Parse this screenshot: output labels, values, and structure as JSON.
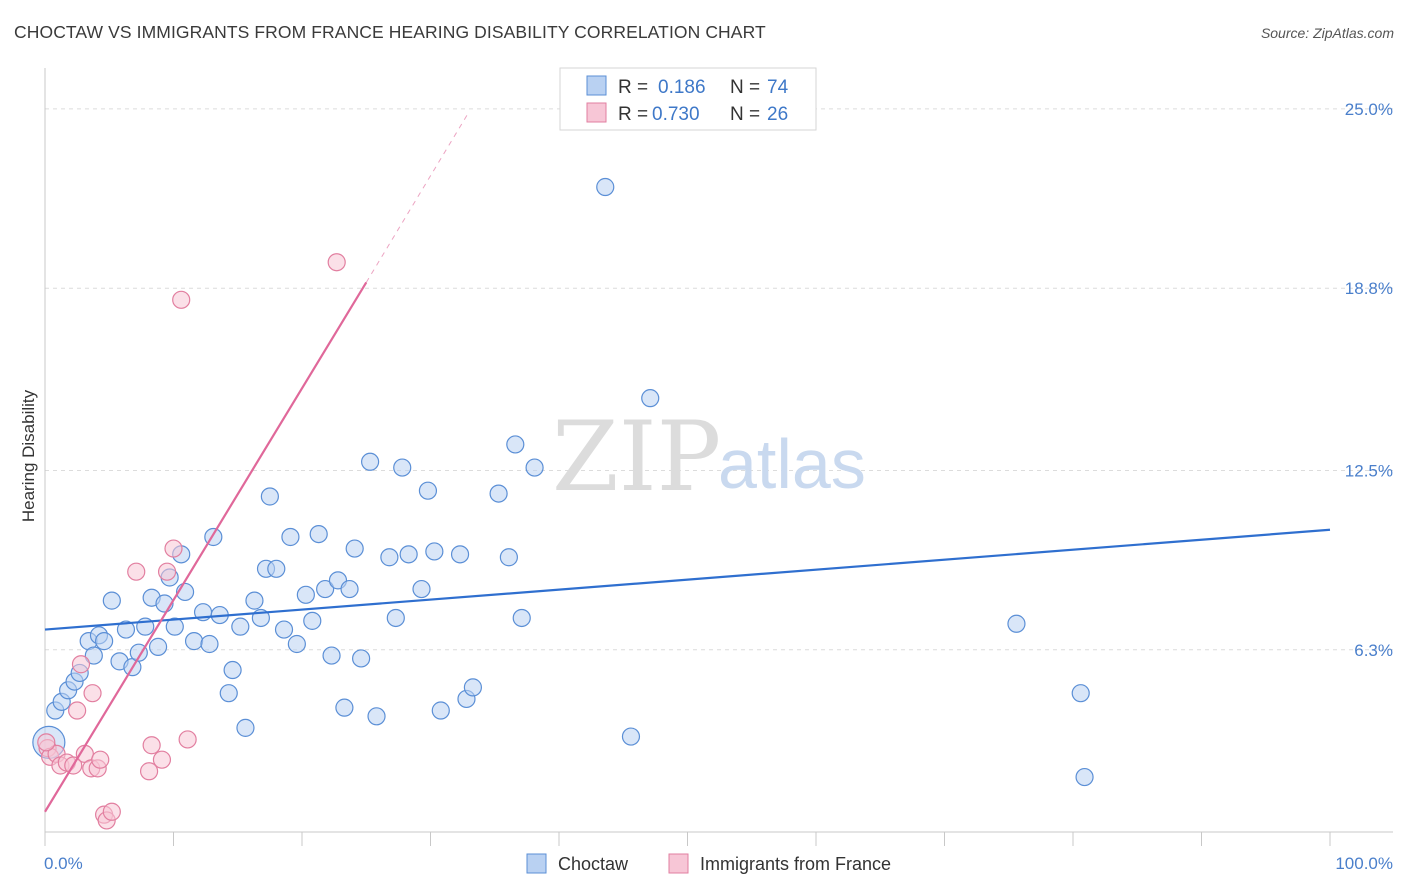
{
  "title": "CHOCTAW VS IMMIGRANTS FROM FRANCE HEARING DISABILITY CORRELATION CHART",
  "source": "Source: ZipAtlas.com",
  "watermark": {
    "zip": "ZIP",
    "atlas": "atlas"
  },
  "colors": {
    "blue_fill": "#b9d1f2",
    "blue_stroke": "#5b8fd6",
    "blue_line": "#2f6fcf",
    "pink_fill": "#f7c6d6",
    "pink_stroke": "#e27fa0",
    "pink_line": "#e0689a",
    "grid": "#dcdcdc",
    "accent_text": "#4a7fcb"
  },
  "legend": {
    "rows": [
      {
        "r_label": "R =",
        "r_value": "0.186",
        "n_label": "N =",
        "n_value": "74"
      },
      {
        "r_label": "R =",
        "r_value": "0.730",
        "n_label": "N =",
        "n_value": "26"
      }
    ]
  },
  "bottom_legend": [
    "Choctaw",
    "Immigrants from France"
  ],
  "chart_data": {
    "type": "scatter",
    "title": "CHOCTAW VS IMMIGRANTS FROM FRANCE HEARING DISABILITY CORRELATION CHART",
    "xlabel": "",
    "ylabel": "Hearing Disability",
    "xlim": [
      0,
      100
    ],
    "ylim": [
      0,
      26
    ],
    "x_tick_labels": [
      "0.0%",
      "100.0%"
    ],
    "y_ticks": [
      6.3,
      12.5,
      18.8,
      25.0
    ],
    "y_tick_labels": [
      "6.3%",
      "12.5%",
      "18.8%",
      "25.0%"
    ],
    "grid": true,
    "series": [
      {
        "name": "Choctaw",
        "r": 0.186,
        "n": 74,
        "trend": {
          "x": [
            0,
            100
          ],
          "y": [
            7.0,
            10.45
          ]
        },
        "points": [
          [
            0.3,
            3.1
          ],
          [
            0.8,
            4.2
          ],
          [
            1.3,
            4.5
          ],
          [
            1.8,
            4.9
          ],
          [
            2.3,
            5.2
          ],
          [
            2.7,
            5.5
          ],
          [
            3.4,
            6.6
          ],
          [
            3.8,
            6.1
          ],
          [
            4.2,
            6.8
          ],
          [
            4.6,
            6.6
          ],
          [
            5.2,
            8.0
          ],
          [
            5.8,
            5.9
          ],
          [
            6.3,
            7.0
          ],
          [
            6.8,
            5.7
          ],
          [
            7.3,
            6.2
          ],
          [
            7.8,
            7.1
          ],
          [
            8.3,
            8.1
          ],
          [
            8.8,
            6.4
          ],
          [
            9.3,
            7.9
          ],
          [
            9.7,
            8.8
          ],
          [
            10.1,
            7.1
          ],
          [
            10.6,
            9.6
          ],
          [
            10.9,
            8.3
          ],
          [
            11.6,
            6.6
          ],
          [
            12.3,
            7.6
          ],
          [
            12.8,
            6.5
          ],
          [
            13.1,
            10.2
          ],
          [
            13.6,
            7.5
          ],
          [
            14.3,
            4.8
          ],
          [
            14.6,
            5.6
          ],
          [
            15.2,
            7.1
          ],
          [
            15.6,
            3.6
          ],
          [
            16.3,
            8.0
          ],
          [
            16.8,
            7.4
          ],
          [
            17.2,
            9.1
          ],
          [
            17.5,
            11.6
          ],
          [
            18.0,
            9.1
          ],
          [
            18.6,
            7.0
          ],
          [
            19.1,
            10.2
          ],
          [
            19.6,
            6.5
          ],
          [
            20.3,
            8.2
          ],
          [
            20.8,
            7.3
          ],
          [
            21.3,
            10.3
          ],
          [
            21.8,
            8.4
          ],
          [
            22.3,
            6.1
          ],
          [
            22.8,
            8.7
          ],
          [
            23.3,
            4.3
          ],
          [
            23.7,
            8.4
          ],
          [
            24.1,
            9.8
          ],
          [
            24.6,
            6.0
          ],
          [
            25.3,
            12.8
          ],
          [
            25.8,
            4.0
          ],
          [
            26.8,
            9.5
          ],
          [
            27.3,
            7.4
          ],
          [
            27.8,
            12.6
          ],
          [
            28.3,
            9.6
          ],
          [
            29.3,
            8.4
          ],
          [
            29.8,
            11.8
          ],
          [
            30.3,
            9.7
          ],
          [
            30.8,
            4.2
          ],
          [
            32.3,
            9.6
          ],
          [
            32.8,
            4.6
          ],
          [
            33.3,
            5.0
          ],
          [
            35.3,
            11.7
          ],
          [
            36.1,
            9.5
          ],
          [
            36.6,
            13.4
          ],
          [
            37.1,
            7.4
          ],
          [
            38.1,
            12.6
          ],
          [
            43.6,
            22.3
          ],
          [
            45.6,
            3.3
          ],
          [
            47.1,
            15.0
          ],
          [
            75.6,
            7.2
          ],
          [
            80.6,
            4.8
          ],
          [
            80.9,
            1.9
          ]
        ]
      },
      {
        "name": "Immigrants from France",
        "r": 0.73,
        "n": 26,
        "trend": {
          "x": [
            0,
            25
          ],
          "y": [
            0.7,
            19.0
          ]
        },
        "trend_dashed": {
          "x": [
            25,
            33
          ],
          "y": [
            19.0,
            24.9
          ]
        },
        "points": [
          [
            0.2,
            2.9
          ],
          [
            0.4,
            2.6
          ],
          [
            0.9,
            2.7
          ],
          [
            1.2,
            2.3
          ],
          [
            1.7,
            2.4
          ],
          [
            2.2,
            2.3
          ],
          [
            2.5,
            4.2
          ],
          [
            2.8,
            5.8
          ],
          [
            3.1,
            2.7
          ],
          [
            3.6,
            2.2
          ],
          [
            3.7,
            4.8
          ],
          [
            4.1,
            2.2
          ],
          [
            4.3,
            2.5
          ],
          [
            4.6,
            0.6
          ],
          [
            4.8,
            0.4
          ],
          [
            5.2,
            0.7
          ],
          [
            7.1,
            9.0
          ],
          [
            8.1,
            2.1
          ],
          [
            8.3,
            3.0
          ],
          [
            9.1,
            2.5
          ],
          [
            9.5,
            9.0
          ],
          [
            10.0,
            9.8
          ],
          [
            10.6,
            18.4
          ],
          [
            11.1,
            3.2
          ],
          [
            22.7,
            19.7
          ],
          [
            0.1,
            3.1
          ]
        ]
      }
    ]
  }
}
